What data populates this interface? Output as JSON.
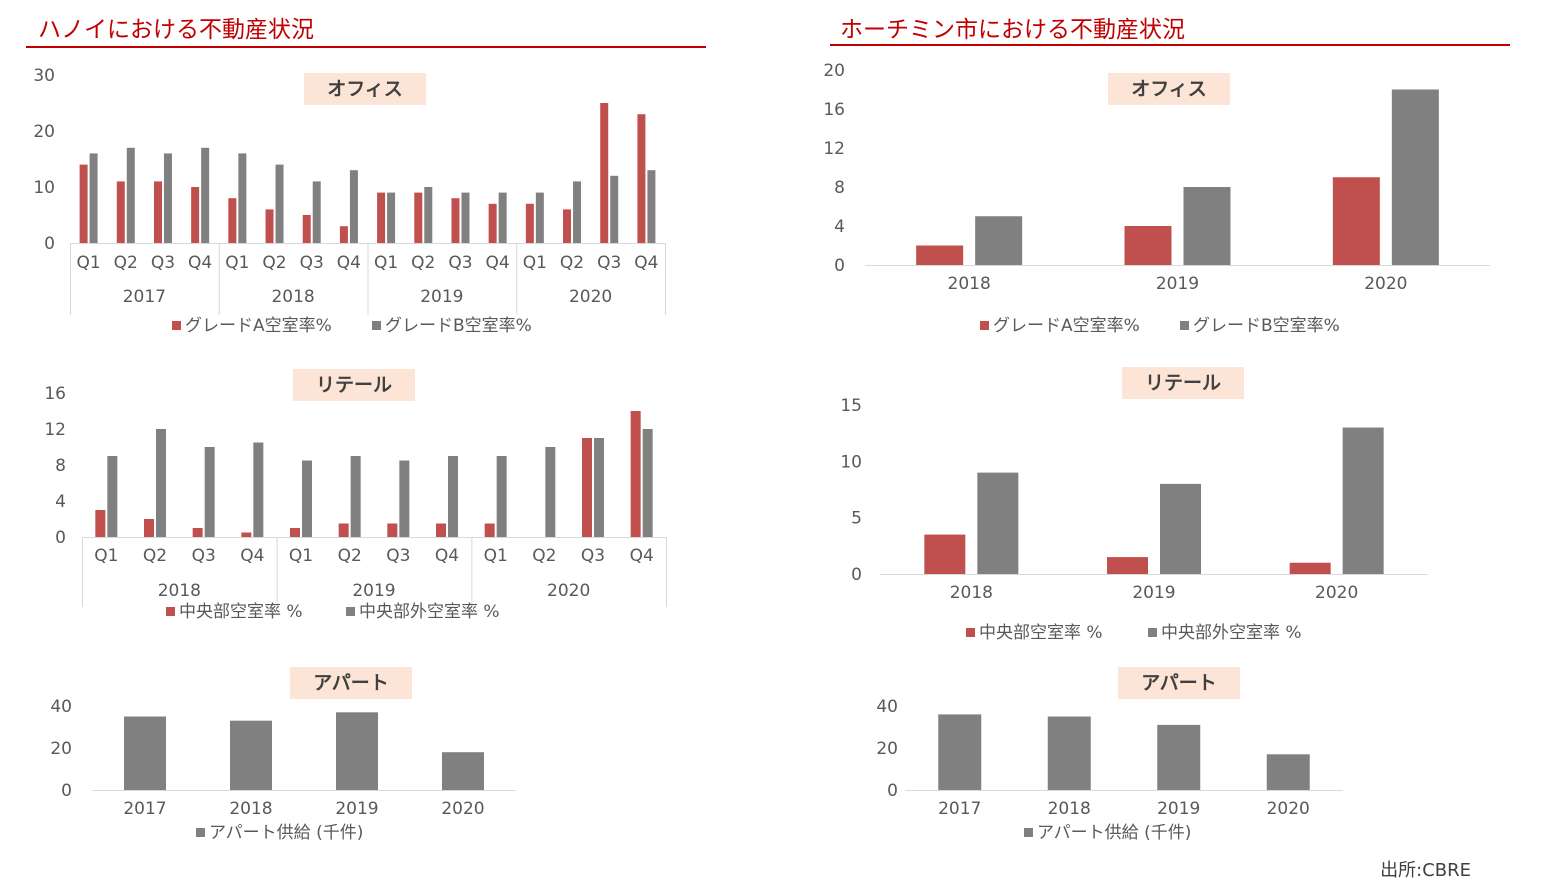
{
  "page": {
    "left_heading": "ハノイにおける不動産状況",
    "right_heading": "ホーチミン市における不動産状況",
    "source": "出所:CBRE"
  },
  "colors": {
    "red": "#c0504d",
    "gray": "#808080",
    "accent": "#c00000",
    "title_bg": "#fce4d6"
  },
  "chart_data": [
    {
      "id": "hanoi-office",
      "type": "bar",
      "title": "オフィス",
      "groups": [
        {
          "label": "2017",
          "categories": [
            "Q1",
            "Q2",
            "Q3",
            "Q4"
          ]
        },
        {
          "label": "2018",
          "categories": [
            "Q1",
            "Q2",
            "Q3",
            "Q4"
          ]
        },
        {
          "label": "2019",
          "categories": [
            "Q1",
            "Q2",
            "Q3",
            "Q4"
          ]
        },
        {
          "label": "2020",
          "categories": [
            "Q1",
            "Q2",
            "Q3",
            "Q4"
          ]
        }
      ],
      "series": [
        {
          "name": "グレードA空室率%",
          "color": "#c0504d",
          "values": [
            14,
            11,
            11,
            10,
            8,
            6,
            5,
            3,
            9,
            9,
            8,
            7,
            7,
            6,
            25,
            23
          ]
        },
        {
          "name": "グレードB空室率%",
          "color": "#808080",
          "values": [
            16,
            17,
            16,
            17,
            16,
            14,
            11,
            13,
            9,
            10,
            9,
            9,
            9,
            11,
            12,
            13
          ]
        }
      ],
      "ylim": [
        0,
        30
      ],
      "yticks": [
        "0",
        "10",
        "20",
        "30"
      ],
      "grid": false,
      "legend": "bottom"
    },
    {
      "id": "hanoi-retail",
      "type": "bar",
      "title": "リテール",
      "groups": [
        {
          "label": "2018",
          "categories": [
            "Q1",
            "Q2",
            "Q3",
            "Q4"
          ]
        },
        {
          "label": "2019",
          "categories": [
            "Q1",
            "Q2",
            "Q3",
            "Q4"
          ]
        },
        {
          "label": "2020",
          "categories": [
            "Q1",
            "Q2",
            "Q3",
            "Q4"
          ]
        }
      ],
      "series": [
        {
          "name": "中央部空室率 %",
          "color": "#c0504d",
          "values": [
            3,
            2,
            1,
            0.5,
            1,
            1.5,
            1.5,
            1.5,
            1.5,
            0,
            11,
            14
          ]
        },
        {
          "name": "中央部外空室率 %",
          "color": "#808080",
          "values": [
            9,
            12,
            10,
            10.5,
            8.5,
            9,
            8.5,
            9,
            9,
            10,
            11,
            12
          ]
        }
      ],
      "ylim": [
        0,
        16
      ],
      "yticks": [
        "0",
        "4",
        "8",
        "12",
        "16"
      ],
      "grid": false,
      "legend": "bottom"
    },
    {
      "id": "hanoi-apartment",
      "type": "bar",
      "title": "アパート",
      "categories": [
        "2017",
        "2018",
        "2019",
        "2020"
      ],
      "series": [
        {
          "name": "アパート供給 (千件)",
          "color": "#808080",
          "values": [
            35,
            33,
            37,
            18
          ]
        }
      ],
      "ylim": [
        0,
        40
      ],
      "yticks": [
        "0",
        "20",
        "40"
      ],
      "grid": false,
      "legend": "bottom"
    },
    {
      "id": "hcmc-office",
      "type": "bar",
      "title": "オフィス",
      "categories": [
        "2018",
        "2019",
        "2020"
      ],
      "series": [
        {
          "name": "グレードA空室率%",
          "color": "#c0504d",
          "values": [
            2,
            4,
            9
          ]
        },
        {
          "name": "グレードB空室率%",
          "color": "#808080",
          "values": [
            5,
            8,
            18
          ]
        }
      ],
      "ylim": [
        0,
        20
      ],
      "yticks": [
        "0",
        "4",
        "8",
        "12",
        "16",
        "20"
      ],
      "grid": false,
      "legend": "bottom"
    },
    {
      "id": "hcmc-retail",
      "type": "bar",
      "title": "リテール",
      "categories": [
        "2018",
        "2019",
        "2020"
      ],
      "series": [
        {
          "name": "中央部空室率 %",
          "color": "#c0504d",
          "values": [
            3.5,
            1.5,
            1
          ]
        },
        {
          "name": "中央部外空室率 %",
          "color": "#808080",
          "values": [
            9,
            8,
            13
          ]
        }
      ],
      "ylim": [
        0,
        15
      ],
      "yticks": [
        "0",
        "5",
        "10",
        "15"
      ],
      "grid": false,
      "legend": "bottom"
    },
    {
      "id": "hcmc-apartment",
      "type": "bar",
      "title": "アパート",
      "categories": [
        "2017",
        "2018",
        "2019",
        "2020"
      ],
      "series": [
        {
          "name": "アパート供給 (千件)",
          "color": "#808080",
          "values": [
            36,
            35,
            31,
            17
          ]
        }
      ],
      "ylim": [
        0,
        40
      ],
      "yticks": [
        "0",
        "20",
        "40"
      ],
      "grid": false,
      "legend": "bottom"
    }
  ]
}
